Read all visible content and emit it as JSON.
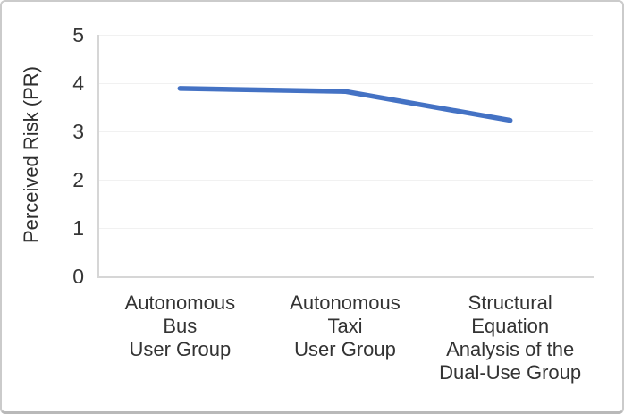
{
  "figure": {
    "background": "#ffffff",
    "border_color": "#cbcbcb"
  },
  "chart_data": {
    "type": "line",
    "title": "",
    "xlabel": "",
    "ylabel": "Perceived Risk (PR)",
    "categories": [
      "Autonomous Bus User Group",
      "Autonomous Taxi User Group",
      "Structural Equation Analysis of the Dual-Use Group"
    ],
    "category_lines": [
      [
        "Autonomous",
        "Bus",
        "User Group"
      ],
      [
        "Autonomous",
        "Taxi",
        "User Group"
      ],
      [
        "Structural",
        "Equation",
        "Analysis of the",
        "Dual-Use Group"
      ]
    ],
    "series": [
      {
        "values": [
          3.89,
          3.83,
          3.23
        ],
        "color": "#4472C4"
      }
    ],
    "ylim": [
      0,
      5
    ],
    "yticks": [
      0,
      1,
      2,
      3,
      4,
      5
    ],
    "grid": "horizontal",
    "legend": "none",
    "colors": {
      "line": "#4472C4",
      "grid": "#f1f1f1",
      "axis": "#d6d6d6",
      "tick_text": "#363636"
    }
  }
}
